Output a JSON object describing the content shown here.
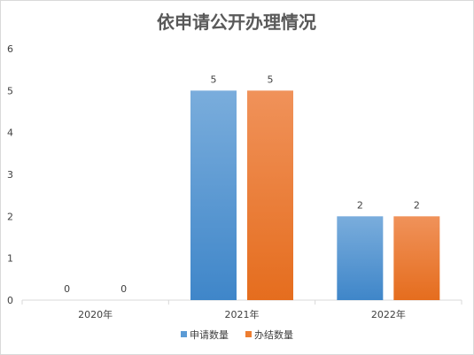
{
  "chart_data": {
    "type": "bar",
    "title": "依申请公开办理情况",
    "categories": [
      "2020年",
      "2021年",
      "2022年"
    ],
    "series": [
      {
        "name": "申请数量",
        "values": [
          0,
          5,
          2
        ],
        "color": "#5b9bd5"
      },
      {
        "name": "办结数量",
        "values": [
          0,
          5,
          2
        ],
        "color": "#ed7d31"
      }
    ],
    "ylim": [
      0,
      6
    ],
    "yticks": [
      0,
      1,
      2,
      3,
      4,
      5,
      6
    ],
    "grid": false,
    "legend_position": "bottom",
    "data_labels": true
  }
}
